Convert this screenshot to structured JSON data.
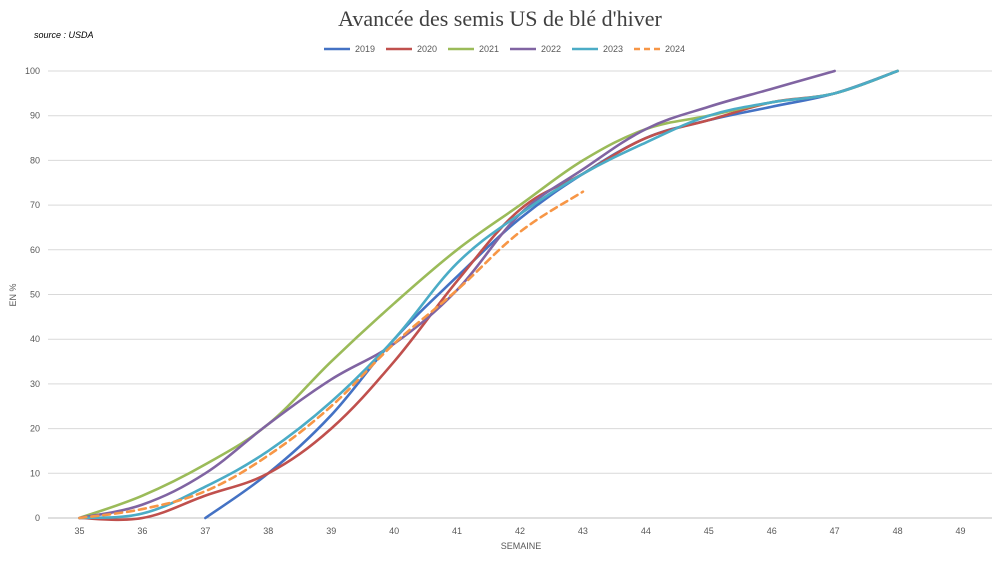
{
  "chart_data": {
    "type": "line",
    "title": "Avancée des semis US de blé d'hiver",
    "source": "source : USDA",
    "xlabel": "SEMAINE",
    "ylabel": "EN %",
    "xlim": [
      34.5,
      49.5
    ],
    "ylim": [
      0,
      100
    ],
    "x_ticks": [
      35,
      36,
      37,
      38,
      39,
      40,
      41,
      42,
      43,
      44,
      45,
      46,
      47,
      48,
      49
    ],
    "y_ticks": [
      0,
      10,
      20,
      30,
      40,
      50,
      60,
      70,
      80,
      90,
      100
    ],
    "grid": "horizontal",
    "legend_position": "top-center",
    "series": [
      {
        "name": "2019",
        "color": "#4472c4",
        "dashed": false,
        "x": [
          37,
          38,
          39,
          40,
          41,
          42,
          43,
          44,
          45,
          46,
          47,
          48
        ],
        "y": [
          0,
          10,
          23,
          40,
          54,
          67,
          77,
          85,
          89,
          92,
          95,
          100
        ]
      },
      {
        "name": "2020",
        "color": "#c0504d",
        "dashed": false,
        "x": [
          35,
          36,
          37,
          38,
          39,
          40,
          41,
          42,
          43,
          44,
          45,
          46,
          47,
          48
        ],
        "y": [
          0,
          0,
          5,
          10,
          20,
          35,
          53,
          69,
          77,
          85,
          89,
          93,
          95,
          100
        ]
      },
      {
        "name": "2021",
        "color": "#9bbb59",
        "dashed": false,
        "x": [
          35,
          36,
          37,
          38,
          39,
          40,
          41,
          42,
          43,
          44,
          45,
          46,
          47,
          48
        ],
        "y": [
          0,
          5,
          12,
          21,
          35,
          48,
          60,
          70,
          80,
          87,
          90,
          93,
          95,
          100
        ]
      },
      {
        "name": "2022",
        "color": "#8064a2",
        "dashed": false,
        "x": [
          35,
          36,
          37,
          38,
          39,
          40,
          41,
          42,
          43,
          44,
          45,
          46,
          47
        ],
        "y": [
          0,
          3,
          10,
          21,
          31,
          39,
          51,
          68,
          78,
          87,
          92,
          96,
          100
        ]
      },
      {
        "name": "2023",
        "color": "#4bacc6",
        "dashed": false,
        "x": [
          35,
          36,
          37,
          38,
          39,
          40,
          41,
          42,
          43,
          44,
          45,
          46,
          47,
          48
        ],
        "y": [
          0,
          1,
          7,
          15,
          26,
          40,
          57,
          68,
          77,
          84,
          90,
          93,
          95,
          100
        ]
      },
      {
        "name": "2024",
        "color": "#f79646",
        "dashed": true,
        "x": [
          35,
          36,
          37,
          38,
          39,
          40,
          41,
          42,
          43
        ],
        "y": [
          0,
          2,
          6,
          14,
          25,
          39,
          51,
          64,
          73
        ]
      }
    ]
  }
}
